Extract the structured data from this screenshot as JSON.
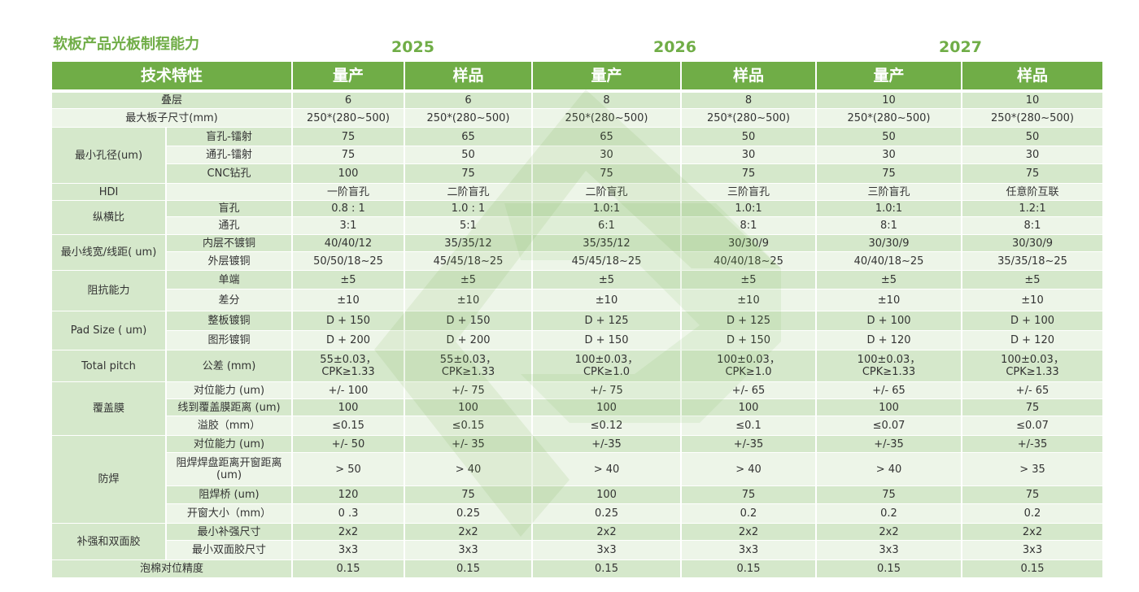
{
  "title": "软板产品光板制程能力",
  "years": [
    "2025",
    "2026",
    "2027"
  ],
  "header": [
    "技术特性",
    "量产",
    "样品",
    "量产",
    "样品",
    "量产",
    "样品"
  ],
  "sections": [
    {
      "label": "叠层",
      "values": [
        "6",
        "6",
        "8",
        "8",
        "10",
        "10"
      ]
    },
    {
      "label": "最大板子尺寸(mm)",
      "values": [
        "250*(280~500)",
        "250*(280~500)",
        "250*(280~500)",
        "250*(280~500)",
        "250*(280~500)",
        "250*(280~500)"
      ]
    },
    {
      "label": "最小孔径(um)",
      "rows": [
        {
          "label": "盲孔-镭射",
          "values": [
            "75",
            "65",
            "65",
            "50",
            "50",
            "50"
          ]
        },
        {
          "label": "通孔-镭射",
          "values": [
            "75",
            "50",
            "30",
            "30",
            "30",
            "30"
          ]
        },
        {
          "label": "CNC钻孔",
          "values": [
            "100",
            "75",
            "75",
            "75",
            "75",
            "75"
          ]
        }
      ]
    },
    {
      "label": "HDI",
      "rows": [
        {
          "values": [
            "一阶盲孔",
            "二阶盲孔",
            "二阶盲孔",
            "三阶盲孔",
            "三阶盲孔",
            "任意阶互联"
          ]
        }
      ]
    },
    {
      "label": "纵横比",
      "rows": [
        {
          "label": "盲孔",
          "values": [
            "0.8 : 1",
            "1.0 : 1",
            "1.0:1",
            "1.0:1",
            "1.0:1",
            "1.2:1"
          ]
        },
        {
          "label": "通孔",
          "values": [
            "3:1",
            "5:1",
            "6:1",
            "8:1",
            "8:1",
            "8:1"
          ]
        }
      ]
    },
    {
      "label": "最小线宽/线距( um)",
      "rows": [
        {
          "label": "内层不镀铜",
          "values": [
            "40/40/12",
            "35/35/12",
            "35/35/12",
            "30/30/9",
            "30/30/9",
            "30/30/9"
          ]
        },
        {
          "label": "外层镀铜",
          "values": [
            "50/50/18~25",
            "45/45/18~25",
            "45/45/18~25",
            "40/40/18~25",
            "40/40/18~25",
            "35/35/18~25"
          ]
        }
      ]
    },
    {
      "label": "阻抗能力",
      "rows": [
        {
          "label": "单端",
          "values": [
            "±5",
            "±5",
            "±5",
            "±5",
            "±5",
            "±5"
          ]
        },
        {
          "label": "差分",
          "values": [
            "±10",
            "±10",
            "±10",
            "±10",
            "±10",
            "±10"
          ]
        }
      ]
    },
    {
      "label": "Pad Size ( um)",
      "rows": [
        {
          "label": "整板镀铜",
          "values": [
            "D + 150",
            "D + 150",
            "D + 125",
            "D + 125",
            "D + 100",
            "D + 100"
          ]
        },
        {
          "label": "图形镀铜",
          "values": [
            "D + 200",
            "D + 200",
            "D + 150",
            "D + 150",
            "D + 120",
            "D + 120"
          ]
        }
      ]
    },
    {
      "label": "Total pitch",
      "rows": [
        {
          "label": "公差 (mm)",
          "values": [
            "55±0.03，\nCPK≥1.33",
            "55±0.03，\nCPK≥1.33",
            "100±0.03，\nCPK≥1.0",
            "100±0.03，\nCPK≥1.0",
            "100±0.03，\nCPK≥1.33",
            "100±0.03，\nCPK≥1.33"
          ]
        }
      ]
    },
    {
      "label": "覆盖膜",
      "rows": [
        {
          "label": "对位能力 (um)",
          "values": [
            "+/- 100",
            "+/- 75",
            "+/- 75",
            "+/- 65",
            "+/- 65",
            "+/- 65"
          ]
        },
        {
          "label": "线到覆盖膜距离 (um)",
          "values": [
            "100",
            "100",
            "100",
            "100",
            "100",
            "75"
          ]
        },
        {
          "label": "溢胶（mm）",
          "values": [
            "≤0.15",
            "≤0.15",
            "≤0.12",
            "≤0.1",
            "≤0.07",
            "≤0.07"
          ]
        }
      ]
    },
    {
      "label": "防焊",
      "rows": [
        {
          "label": "对位能力 (um)",
          "values": [
            "+/- 50",
            "+/- 35",
            "+/-35",
            "+/-35",
            "+/-35",
            "+/-35"
          ]
        },
        {
          "label": "阻焊焊盘距离开窗距离(um)",
          "values": [
            "> 50",
            "> 40",
            "> 40",
            "> 40",
            "> 40",
            "> 35"
          ]
        },
        {
          "label": "阻焊桥 (um)",
          "values": [
            "120",
            "75",
            "100",
            "75",
            "75",
            "75"
          ]
        },
        {
          "label": "开窗大小（mm）",
          "values": [
            "0 .3",
            "0.25",
            "0.25",
            "0.2",
            "0.2",
            "0.2"
          ]
        }
      ]
    },
    {
      "label": "补强和双面胶",
      "rows": [
        {
          "label": "最小补强尺寸",
          "values": [
            "2x2",
            "2x2",
            "2x2",
            "2x2",
            "2x2",
            "2x2"
          ]
        },
        {
          "label": "最小双面胶尺寸",
          "values": [
            "3x3",
            "3x3",
            "3x3",
            "3x3",
            "3x3",
            "3x3"
          ]
        }
      ]
    },
    {
      "label": "泡棉对位精度",
      "values": [
        "0.15",
        "0.15",
        "0.15",
        "0.15",
        "0.15",
        "0.15"
      ]
    }
  ]
}
